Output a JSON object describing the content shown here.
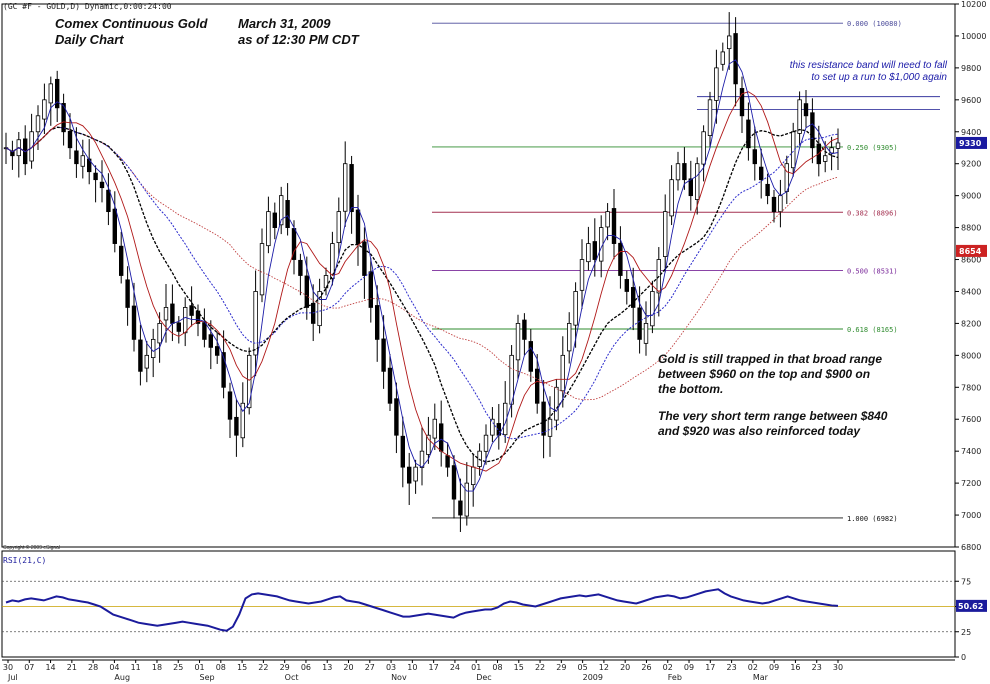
{
  "symbol_label": "(GC #F - GOLD,D) Dynamic,0:00:24:00",
  "title": {
    "line1": "Comex Continuous Gold",
    "line2": "Daily Chart",
    "date_line1": "March 31, 2009",
    "date_line2": "as of  12:30 PM CDT"
  },
  "annotations": {
    "resistance_line1": "this resistance band will need to fall",
    "resistance_line2": "to set up a run to $1,000 again",
    "note1_line1": "Gold is still trapped in that broad range",
    "note1_line2": "between $960 on the top and $900 on",
    "note1_line3": "the bottom.",
    "note2_line1": "The very short term range between $840",
    "note2_line2": "and $920 was also reinforced today"
  },
  "copyright": "Copyright © 2009 eSignal",
  "rsi_label": "RSI(21,C)",
  "colors": {
    "price_bar": "#000000",
    "ma_fast": "#1c1ca8",
    "ma_red": "#b01818",
    "ma_black": "#000000",
    "ma_blue_dotted": "#2a2acc",
    "ma_red_dotted": "#c04040",
    "rsi_line": "#1b1b9c",
    "price_tag_current": "#1a1aa0",
    "price_tag_red": "#cc2222"
  },
  "chart_data": [
    {
      "type": "candlestick",
      "title": "Comex Continuous Gold Daily Chart",
      "ylim": [
        6800,
        10200
      ],
      "y_ticks": [
        6800,
        7000,
        7200,
        7400,
        7600,
        7800,
        8000,
        8200,
        8400,
        8600,
        8800,
        9000,
        9200,
        9400,
        9600,
        9800,
        10000,
        10200
      ],
      "x_tick_labels": [
        "30",
        "07",
        "14",
        "21",
        "28",
        "04",
        "11",
        "18",
        "25",
        "01",
        "08",
        "15",
        "22",
        "29",
        "06",
        "13",
        "20",
        "27",
        "03",
        "10",
        "17",
        "24",
        "01",
        "08",
        "15",
        "22",
        "29",
        "05",
        "12",
        "20",
        "26",
        "02",
        "09",
        "17",
        "23",
        "02",
        "09",
        "16",
        "23",
        "30"
      ],
      "month_labels": [
        "Jul",
        "Aug",
        "Sep",
        "Oct",
        "Nov",
        "Dec",
        "2009",
        "Feb",
        "Mar"
      ],
      "fibonacci_levels": [
        {
          "label": "0.000 (10080)",
          "value": 10080
        },
        {
          "label": "0.250 (9305)",
          "value": 9305
        },
        {
          "label": "0.382 (8896)",
          "value": 8896
        },
        {
          "label": "0.500 (8531)",
          "value": 8531
        },
        {
          "label": "0.618 (8165)",
          "value": 8165
        },
        {
          "label": "1.000 (6982)",
          "value": 6982
        }
      ],
      "resistance_band": [
        9540,
        9620
      ],
      "price_tags": [
        {
          "label": "9330",
          "value": 9330,
          "role": "current"
        },
        {
          "label": "8654",
          "value": 8654,
          "role": "marker"
        }
      ],
      "close_approx": [
        9300,
        9250,
        9350,
        9200,
        9400,
        9500,
        9600,
        9700,
        9550,
        9400,
        9300,
        9200,
        9250,
        9150,
        9100,
        9050,
        8900,
        8700,
        8500,
        8300,
        8100,
        7900,
        8000,
        8100,
        8200,
        8300,
        8200,
        8150,
        8300,
        8250,
        8200,
        8100,
        8050,
        8000,
        7800,
        7600,
        7500,
        7700,
        8000,
        8400,
        8700,
        8900,
        8800,
        9000,
        8800,
        8600,
        8500,
        8300,
        8200,
        8400,
        8500,
        8700,
        8900,
        9200,
        8900,
        8700,
        8500,
        8300,
        8100,
        7900,
        7700,
        7500,
        7300,
        7200,
        7300,
        7400,
        7500,
        7600,
        7400,
        7300,
        7100,
        7000,
        7200,
        7300,
        7400,
        7500,
        7600,
        7500,
        7700,
        8000,
        8200,
        8100,
        7900,
        7700,
        7500,
        7600,
        7800,
        8000,
        8200,
        8400,
        8600,
        8700,
        8600,
        8800,
        8900,
        8700,
        8500,
        8400,
        8300,
        8100,
        8200,
        8400,
        8600,
        8900,
        9100,
        9200,
        9100,
        9000,
        9200,
        9400,
        9600,
        9800,
        9900,
        10000,
        9700,
        9500,
        9300,
        9200,
        9100,
        9000,
        8900,
        9000,
        9200,
        9400,
        9600,
        9500,
        9300,
        9200,
        9250,
        9300,
        9330
      ],
      "series": [
        {
          "name": "price",
          "kind": "ohlc"
        },
        {
          "name": "ma_fast",
          "kind": "line"
        },
        {
          "name": "ma_red",
          "kind": "line"
        },
        {
          "name": "ma_black",
          "kind": "line"
        },
        {
          "name": "ma_blue_dotted",
          "kind": "line"
        },
        {
          "name": "ma_red_dotted",
          "kind": "line"
        }
      ]
    },
    {
      "type": "line",
      "title": "RSI(21,C)",
      "ylim": [
        0,
        100
      ],
      "y_ticks": [
        0,
        25,
        50,
        75
      ],
      "reference_lines": [
        25,
        50,
        75
      ],
      "last_value_label": "50.62",
      "values": [
        54,
        56,
        55,
        57,
        58,
        57,
        56,
        58,
        60,
        59,
        57,
        56,
        55,
        54,
        52,
        50,
        46,
        42,
        40,
        38,
        36,
        34,
        33,
        32,
        31,
        32,
        33,
        34,
        35,
        34,
        33,
        32,
        31,
        29,
        27,
        26,
        30,
        42,
        58,
        62,
        63,
        62,
        61,
        60,
        58,
        56,
        55,
        54,
        53,
        54,
        55,
        57,
        59,
        60,
        56,
        55,
        54,
        52,
        50,
        48,
        46,
        44,
        42,
        40,
        40,
        41,
        42,
        43,
        42,
        41,
        40,
        39,
        42,
        44,
        45,
        46,
        47,
        47,
        49,
        53,
        55,
        54,
        52,
        51,
        50,
        52,
        54,
        56,
        58,
        59,
        60,
        61,
        60,
        61,
        62,
        60,
        58,
        56,
        55,
        54,
        53,
        55,
        57,
        59,
        60,
        61,
        60,
        58,
        59,
        61,
        63,
        65,
        66,
        67,
        63,
        60,
        58,
        56,
        55,
        54,
        53,
        54,
        56,
        58,
        60,
        58,
        56,
        55,
        54,
        53,
        52,
        51,
        50.62
      ]
    }
  ]
}
